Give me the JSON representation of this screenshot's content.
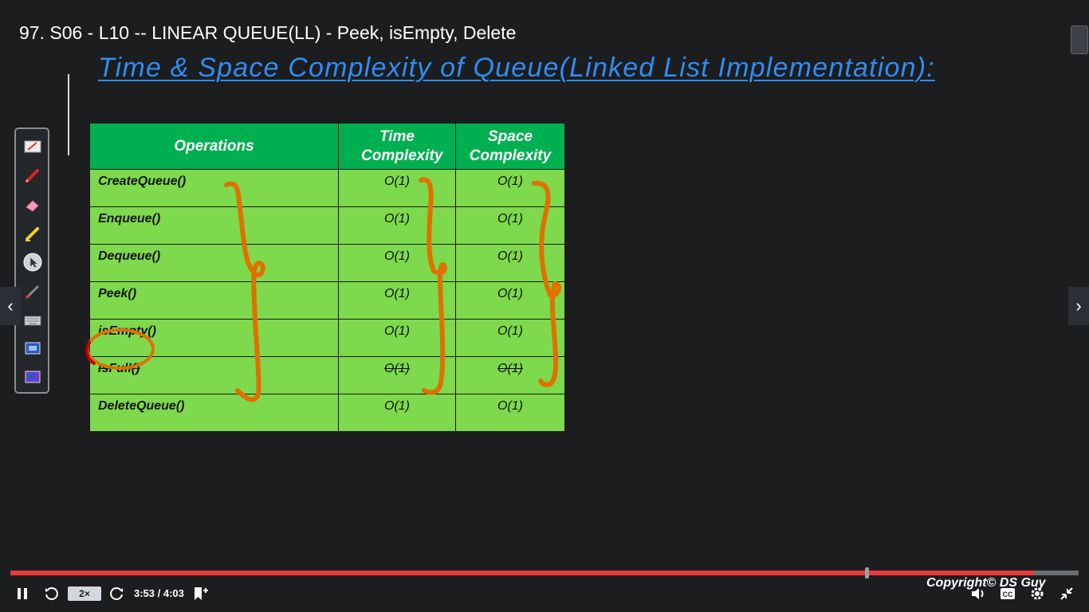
{
  "video": {
    "title": "97. S06 - L10 -- LINEAR QUEUE(LL) - Peek, isEmpty, Delete"
  },
  "slide": {
    "heading": "Time & Space Complexity of Queue(Linked List Implementation):",
    "table": {
      "headers": [
        "Operations",
        "Time Complexity",
        "Space Complexity"
      ],
      "rows": [
        {
          "op": "CreateQueue()",
          "time": "O(1)",
          "space": "O(1)"
        },
        {
          "op": "Enqueue()",
          "time": "O(1)",
          "space": "O(1)"
        },
        {
          "op": "Dequeue()",
          "time": "O(1)",
          "space": "O(1)"
        },
        {
          "op": "Peek()",
          "time": "O(1)",
          "space": "O(1)"
        },
        {
          "op": "isEmpty()",
          "time": "O(1)",
          "space": "O(1)"
        },
        {
          "op": "isFull()",
          "time": "O(1)",
          "space": "O(1)",
          "struck_through": true
        },
        {
          "op": "DeleteQueue()",
          "time": "O(1)",
          "space": "O(1)"
        }
      ]
    }
  },
  "toolbar": {
    "tools": [
      "whiteboard-icon",
      "pen-icon",
      "eraser-icon",
      "highlighter-icon",
      "pointer-icon",
      "laser-pen-icon",
      "keyboard-icon",
      "screen-capture-icon",
      "screen-share-icon"
    ]
  },
  "player": {
    "speed": "2×",
    "time": "3:53 / 4:03",
    "progress_fraction": 0.958,
    "buffered_fraction": 0.958,
    "copyright": "Copyright© DS Guy",
    "colors": {
      "progress": "#ec3838",
      "heading": "#2f8df2",
      "header_green": "#00b050",
      "cell_green": "#7ed94c",
      "ink_orange": "#e07000"
    }
  }
}
